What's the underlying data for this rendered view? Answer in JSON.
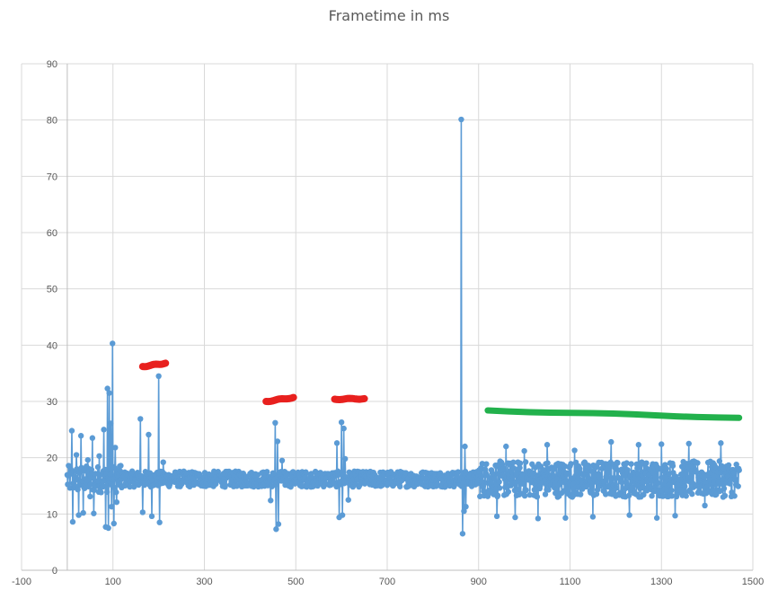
{
  "chart_data": {
    "type": "scatter",
    "title": "Frametime in ms",
    "xlabel": "",
    "ylabel": "",
    "xlim": [
      -100,
      1500
    ],
    "ylim": [
      0,
      90
    ],
    "x_ticks": [
      -100,
      100,
      300,
      500,
      700,
      900,
      1100,
      1300,
      1500
    ],
    "y_ticks": [
      0,
      10,
      20,
      30,
      40,
      50,
      60,
      70,
      80,
      90
    ],
    "grid": true,
    "legend": "none",
    "colors": {
      "series": "#5B9BD5",
      "gridline": "#D9D9D9",
      "axis": "#BFBFBF",
      "annotation_red": "#E8201E",
      "annotation_green": "#22B14C"
    },
    "series": [
      {
        "x_start": 0,
        "x_end": 1470,
        "baseline": 16.2,
        "noise": 1.4,
        "spikes": [
          [
            10,
            24.8
          ],
          [
            12,
            8.6
          ],
          [
            20,
            20.5
          ],
          [
            25,
            9.8
          ],
          [
            30,
            23.9
          ],
          [
            35,
            10.2
          ],
          [
            45,
            19.6
          ],
          [
            50,
            13.1
          ],
          [
            55,
            23.5
          ],
          [
            58,
            10.1
          ],
          [
            70,
            20.3
          ],
          [
            80,
            25.0
          ],
          [
            84,
            7.7
          ],
          [
            88,
            32.3
          ],
          [
            90,
            7.5
          ],
          [
            92,
            31.5
          ],
          [
            95,
            26.1
          ],
          [
            97,
            11.3
          ],
          [
            99,
            40.3
          ],
          [
            102,
            8.3
          ],
          [
            105,
            21.8
          ],
          [
            108,
            12.1
          ],
          [
            115,
            18.5
          ],
          [
            160,
            26.9
          ],
          [
            165,
            10.3
          ],
          [
            178,
            24.1
          ],
          [
            185,
            9.6
          ],
          [
            200,
            34.5
          ],
          [
            202,
            8.5
          ],
          [
            210,
            19.2
          ],
          [
            445,
            12.4
          ],
          [
            455,
            26.2
          ],
          [
            457,
            7.3
          ],
          [
            460,
            22.9
          ],
          [
            462,
            8.2
          ],
          [
            470,
            19.5
          ],
          [
            590,
            22.6
          ],
          [
            595,
            9.4
          ],
          [
            600,
            26.3
          ],
          [
            602,
            9.8
          ],
          [
            605,
            25.2
          ],
          [
            608,
            19.8
          ],
          [
            615,
            12.5
          ],
          [
            862,
            80.1
          ],
          [
            865,
            6.5
          ],
          [
            868,
            10.5
          ],
          [
            870,
            22.0
          ],
          [
            872,
            11.3
          ],
          [
            940,
            9.6
          ],
          [
            960,
            22.0
          ],
          [
            980,
            9.4
          ],
          [
            1000,
            21.2
          ],
          [
            1030,
            9.2
          ],
          [
            1050,
            22.3
          ],
          [
            1090,
            9.3
          ],
          [
            1110,
            21.3
          ],
          [
            1150,
            9.5
          ],
          [
            1190,
            22.8
          ],
          [
            1230,
            9.8
          ],
          [
            1250,
            22.3
          ],
          [
            1290,
            9.3
          ],
          [
            1300,
            22.4
          ],
          [
            1330,
            9.7
          ],
          [
            1360,
            22.5
          ],
          [
            1395,
            11.5
          ],
          [
            1430,
            22.6
          ],
          [
            1460,
            13.2
          ]
        ]
      }
    ],
    "annotations": [
      {
        "color": "red",
        "x": [
          165,
          215
        ],
        "y": [
          36.2,
          36.8
        ]
      },
      {
        "color": "red",
        "x": [
          435,
          495
        ],
        "y": [
          30.0,
          30.7
        ]
      },
      {
        "color": "red",
        "x": [
          585,
          650
        ],
        "y": [
          30.4,
          30.5
        ]
      },
      {
        "color": "green",
        "x": [
          920,
          1470
        ],
        "y": [
          28.4,
          27.1
        ]
      }
    ]
  }
}
